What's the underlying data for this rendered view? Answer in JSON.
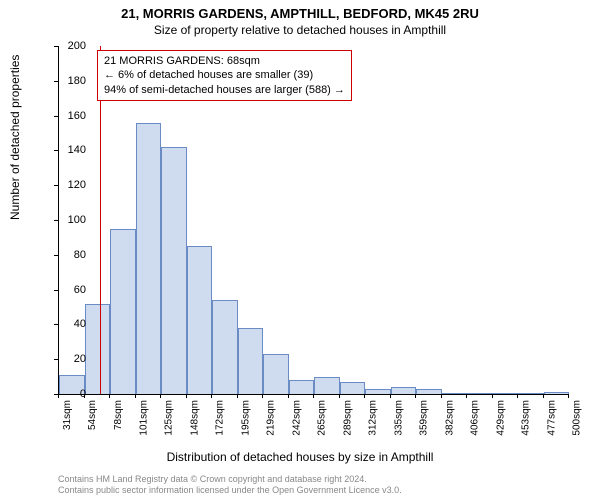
{
  "title_line1": "21, MORRIS GARDENS, AMPTHILL, BEDFORD, MK45 2RU",
  "title_line2": "Size of property relative to detached houses in Ampthill",
  "ylabel": "Number of detached properties",
  "xlabel": "Distribution of detached houses by size in Ampthill",
  "yaxis": {
    "min": 0,
    "max": 200,
    "step": 20,
    "ticks": [
      0,
      20,
      40,
      60,
      80,
      100,
      120,
      140,
      160,
      180,
      200
    ]
  },
  "xaxis": {
    "ticks": [
      "31sqm",
      "54sqm",
      "78sqm",
      "101sqm",
      "125sqm",
      "148sqm",
      "172sqm",
      "195sqm",
      "219sqm",
      "242sqm",
      "265sqm",
      "289sqm",
      "312sqm",
      "335sqm",
      "359sqm",
      "382sqm",
      "406sqm",
      "429sqm",
      "453sqm",
      "477sqm",
      "500sqm"
    ]
  },
  "bars": {
    "values": [
      11,
      52,
      95,
      156,
      142,
      85,
      54,
      38,
      23,
      8,
      10,
      7,
      3,
      4,
      3,
      0,
      0,
      0,
      0,
      1
    ],
    "fill": "#cfdcf0",
    "stroke": "#6a8bc4",
    "stroke_width": 1
  },
  "reference_line": {
    "position_index": 1.6,
    "color": "#cc0000"
  },
  "annotation": {
    "line1": "21 MORRIS GARDENS: 68sqm",
    "line2": "← 6% of detached houses are smaller (39)",
    "line3": "94% of semi-detached houses are larger (588) →",
    "border_color": "#cc0000"
  },
  "footer": {
    "line1": "Contains HM Land Registry data © Crown copyright and database right 2024.",
    "line2": "Contains public sector information licensed under the Open Government Licence v3.0."
  },
  "colors": {
    "background": "#ffffff",
    "text": "#000000",
    "footer_text": "#888888"
  },
  "fonts": {
    "title": 13,
    "subtitle": 12,
    "axis_label": 12,
    "tick": 11,
    "xtick": 10,
    "annot": 11,
    "footer": 9
  }
}
